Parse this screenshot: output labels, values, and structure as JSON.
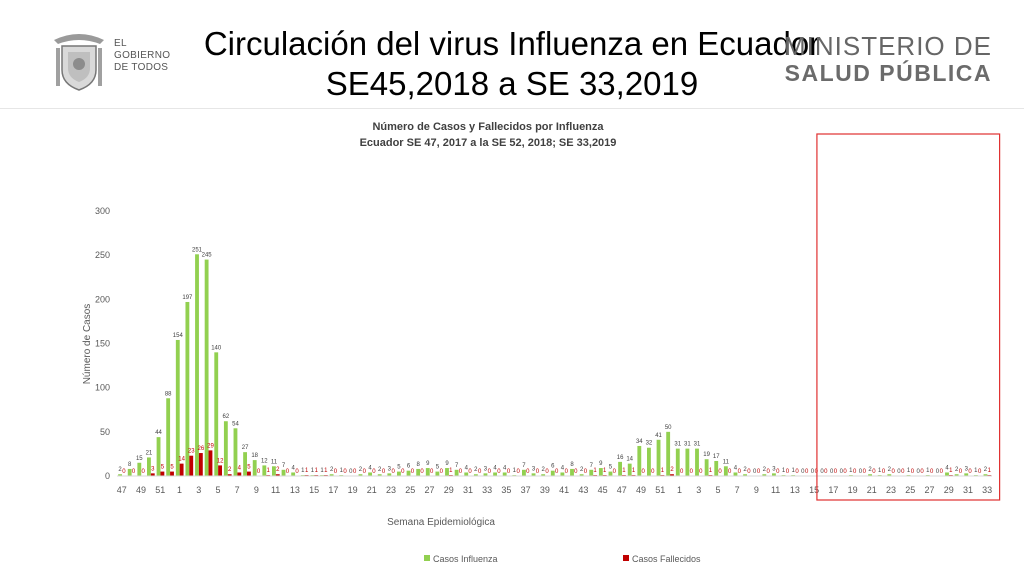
{
  "header": {
    "title_line1": "Circulación del virus Influenza en Ecuador",
    "title_line2": "SE45,2018 a SE 33,2019",
    "logo_left": [
      "EL",
      "GOBIERNO",
      "DE TODOS"
    ],
    "ministry_line1": "MINISTERIO DE",
    "ministry_line2": "SALUD PÚBLICA"
  },
  "chart_data": {
    "type": "bar",
    "title": "Número de Casos y Fallecidos por Influenza",
    "subtitle": "Ecuador SE 47, 2017 a la SE 52, 2018; SE 33,2019",
    "xlabel": "Semana Epidemiológica",
    "ylabel": "Número de Casos",
    "ylim": [
      0,
      300
    ],
    "yticks": [
      0,
      50,
      100,
      150,
      200,
      250,
      300
    ],
    "legend_position": "bottom",
    "grid": false,
    "highlight_box": {
      "from_index": 73,
      "to_index": 91,
      "color": "#e03030"
    },
    "categories": [
      47,
      48,
      49,
      50,
      51,
      52,
      1,
      2,
      3,
      4,
      5,
      6,
      7,
      8,
      9,
      10,
      11,
      12,
      13,
      14,
      15,
      16,
      17,
      18,
      19,
      20,
      21,
      22,
      23,
      24,
      25,
      26,
      27,
      28,
      29,
      30,
      31,
      32,
      33,
      34,
      35,
      36,
      37,
      38,
      39,
      40,
      41,
      42,
      43,
      44,
      45,
      46,
      47,
      48,
      49,
      50,
      51,
      52,
      1,
      2,
      3,
      4,
      5,
      6,
      7,
      8,
      9,
      10,
      11,
      12,
      13,
      14,
      15,
      16,
      17,
      18,
      19,
      20,
      21,
      22,
      23,
      24,
      25,
      26,
      27,
      28,
      29,
      30,
      31,
      32,
      33
    ],
    "tick_labels": [
      "47",
      "49",
      "51",
      "1",
      "3",
      "5",
      "7",
      "9",
      "11",
      "13",
      "15",
      "17",
      "19",
      "21",
      "23",
      "25",
      "27",
      "29",
      "31",
      "33",
      "35",
      "37",
      "39",
      "41",
      "43",
      "45",
      "47",
      "49",
      "51",
      "1",
      "3",
      "5",
      "7",
      "9",
      "11",
      "13",
      "15",
      "17",
      "19",
      "21",
      "23",
      "25",
      "27",
      "29",
      "31",
      "33"
    ],
    "series": [
      {
        "name": "Casos Influenza",
        "color": "#92d050",
        "values": [
          2,
          8,
          15,
          21,
          44,
          88,
          154,
          197,
          251,
          245,
          140,
          62,
          54,
          27,
          18,
          12,
          11,
          7,
          4,
          1,
          1,
          1,
          2,
          1,
          0,
          2,
          4,
          2,
          3,
          5,
          6,
          8,
          9,
          5,
          9,
          7,
          4,
          2,
          3,
          4,
          4,
          1,
          7,
          3,
          2,
          6,
          4,
          8,
          2,
          7,
          9,
          5,
          16,
          14,
          34,
          32,
          41,
          50,
          31,
          31,
          31,
          19,
          17,
          11,
          4,
          2,
          0,
          2,
          3,
          1,
          1,
          0,
          0,
          0,
          0,
          0,
          1,
          0,
          2,
          1,
          2,
          0,
          1,
          0,
          1,
          0,
          4,
          2,
          3,
          1,
          2
        ]
      },
      {
        "name": "Casos Fallecidos",
        "color": "#c00000",
        "values": [
          0,
          0,
          0,
          3,
          5,
          5,
          14,
          23,
          26,
          29,
          12,
          2,
          4,
          5,
          0,
          1,
          2,
          0,
          0,
          1,
          1,
          1,
          0,
          0,
          0,
          0,
          0,
          0,
          0,
          0,
          0,
          0,
          0,
          0,
          1,
          0,
          0,
          0,
          0,
          0,
          0,
          0,
          0,
          0,
          0,
          0,
          0,
          0,
          0,
          1,
          1,
          0,
          1,
          1,
          0,
          0,
          1,
          2,
          0,
          0,
          0,
          1,
          0,
          0,
          0,
          0,
          0,
          0,
          0,
          0,
          0,
          0,
          0,
          0,
          0,
          0,
          0,
          0,
          0,
          0,
          0,
          0,
          0,
          0,
          0,
          0,
          1,
          0,
          0,
          0,
          1
        ]
      }
    ]
  }
}
